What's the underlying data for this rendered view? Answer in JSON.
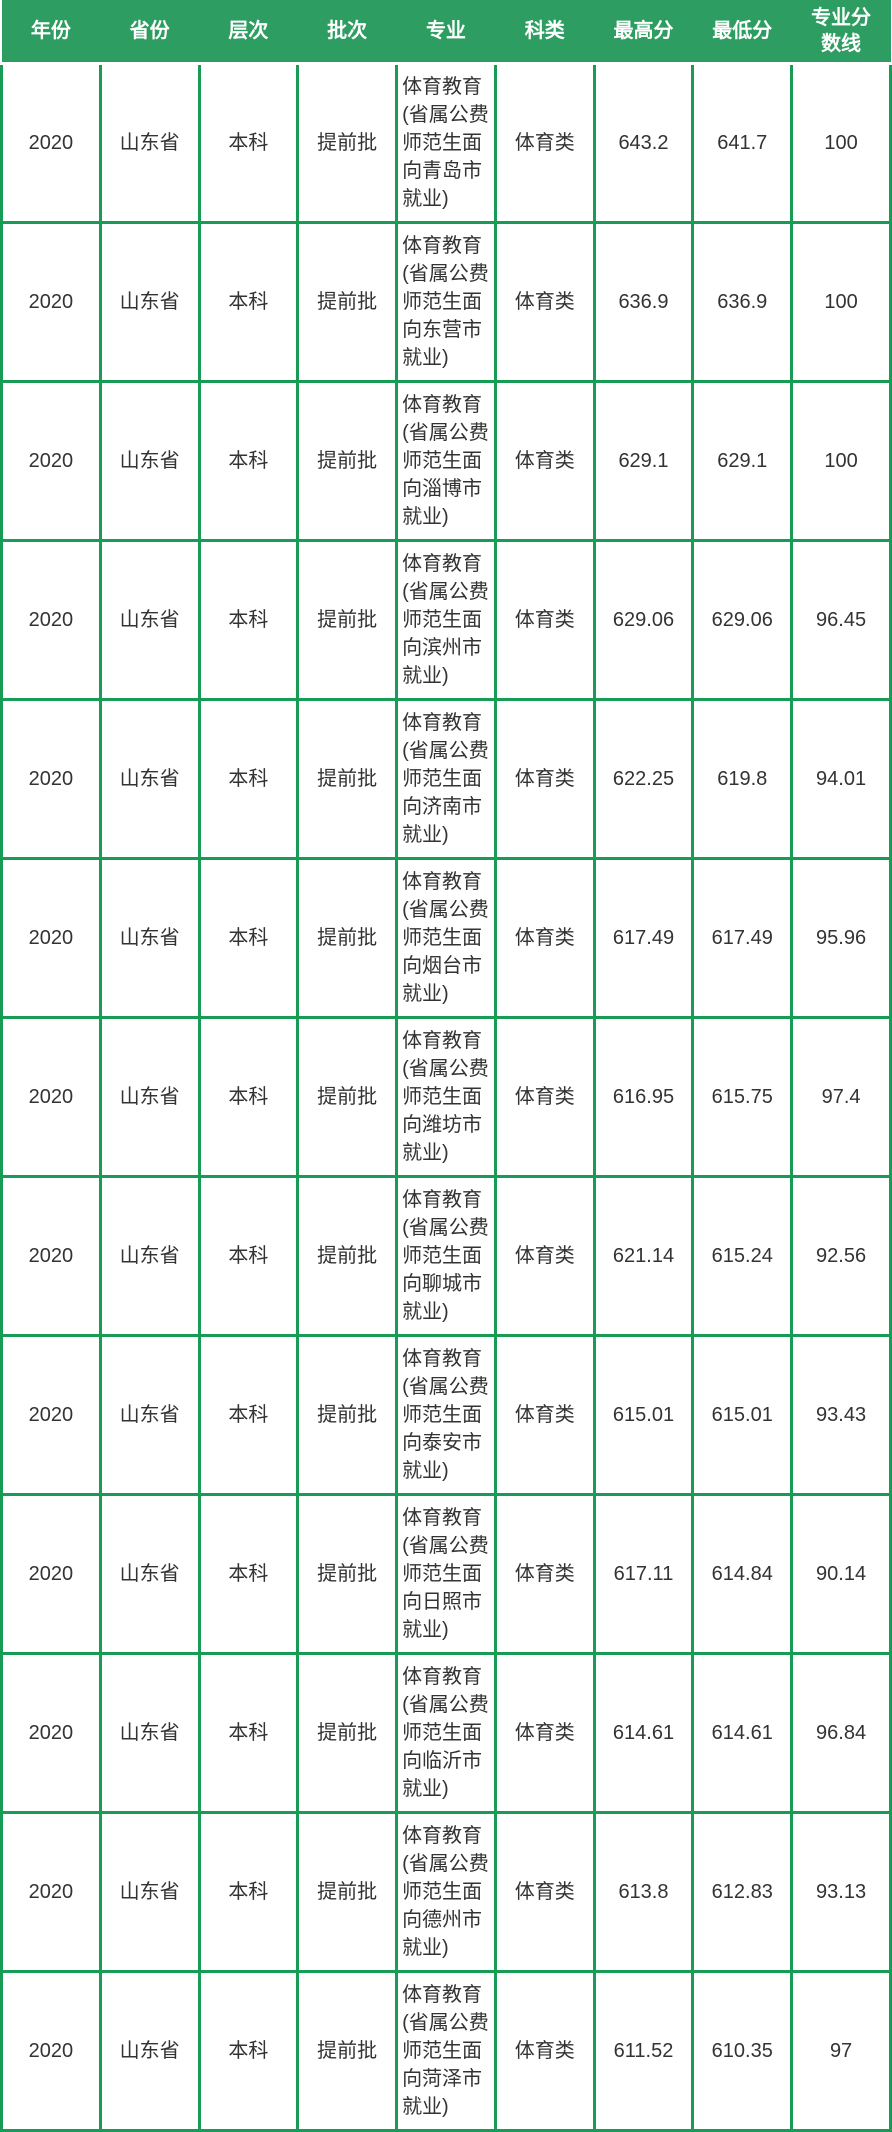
{
  "colors": {
    "header_bg": "#2E9D62",
    "grid_border": "#179B55",
    "header_text": "#FFFFFF",
    "cell_text": "#333333"
  },
  "table": {
    "columns": [
      "年份",
      "省份",
      "层次",
      "批次",
      "专业",
      "科类",
      "最高分",
      "最低分",
      "专业分数线"
    ],
    "rows": [
      [
        "2020",
        "山东省",
        "本科",
        "提前批",
        "体育教育(省属公费师范生面向青岛市就业)",
        "体育类",
        "643.2",
        "641.7",
        "100"
      ],
      [
        "2020",
        "山东省",
        "本科",
        "提前批",
        "体育教育(省属公费师范生面向东营市就业)",
        "体育类",
        "636.9",
        "636.9",
        "100"
      ],
      [
        "2020",
        "山东省",
        "本科",
        "提前批",
        "体育教育(省属公费师范生面向淄博市就业)",
        "体育类",
        "629.1",
        "629.1",
        "100"
      ],
      [
        "2020",
        "山东省",
        "本科",
        "提前批",
        "体育教育(省属公费师范生面向滨州市就业)",
        "体育类",
        "629.06",
        "629.06",
        "96.45"
      ],
      [
        "2020",
        "山东省",
        "本科",
        "提前批",
        "体育教育(省属公费师范生面向济南市就业)",
        "体育类",
        "622.25",
        "619.8",
        "94.01"
      ],
      [
        "2020",
        "山东省",
        "本科",
        "提前批",
        "体育教育(省属公费师范生面向烟台市就业)",
        "体育类",
        "617.49",
        "617.49",
        "95.96"
      ],
      [
        "2020",
        "山东省",
        "本科",
        "提前批",
        "体育教育(省属公费师范生面向潍坊市就业)",
        "体育类",
        "616.95",
        "615.75",
        "97.4"
      ],
      [
        "2020",
        "山东省",
        "本科",
        "提前批",
        "体育教育(省属公费师范生面向聊城市就业)",
        "体育类",
        "621.14",
        "615.24",
        "92.56"
      ],
      [
        "2020",
        "山东省",
        "本科",
        "提前批",
        "体育教育(省属公费师范生面向泰安市就业)",
        "体育类",
        "615.01",
        "615.01",
        "93.43"
      ],
      [
        "2020",
        "山东省",
        "本科",
        "提前批",
        "体育教育(省属公费师范生面向日照市就业)",
        "体育类",
        "617.11",
        "614.84",
        "90.14"
      ],
      [
        "2020",
        "山东省",
        "本科",
        "提前批",
        "体育教育(省属公费师范生面向临沂市就业)",
        "体育类",
        "614.61",
        "614.61",
        "96.84"
      ],
      [
        "2020",
        "山东省",
        "本科",
        "提前批",
        "体育教育(省属公费师范生面向德州市就业)",
        "体育类",
        "613.8",
        "612.83",
        "93.13"
      ],
      [
        "2020",
        "山东省",
        "本科",
        "提前批",
        "体育教育(省属公费师范生面向菏泽市就业)",
        "体育类",
        "611.52",
        "610.35",
        "97"
      ]
    ]
  }
}
